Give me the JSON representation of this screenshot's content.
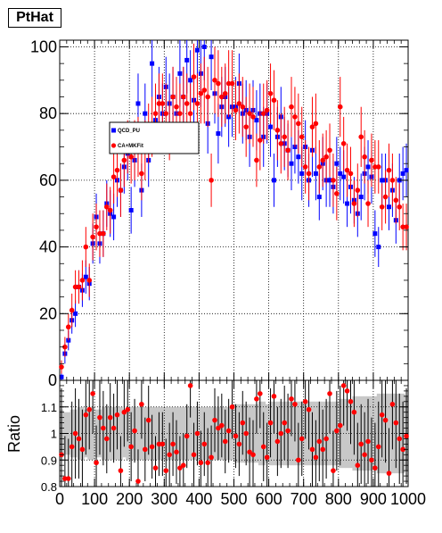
{
  "title": "PtHat",
  "chart_data": [
    {
      "type": "scatter",
      "title": "PtHat",
      "xlabel": "",
      "ylabel": "",
      "xlim": [
        0,
        1000
      ],
      "ylim": [
        0,
        102
      ],
      "x_ticks": [
        "0",
        "100",
        "200",
        "300",
        "400",
        "500",
        "600",
        "700",
        "800",
        "900",
        "1000"
      ],
      "y_ticks": [
        "0",
        "20",
        "40",
        "60",
        "80",
        "100"
      ],
      "grid": true,
      "legend": "upper-left-center",
      "series": [
        {
          "name": "QCD_PU",
          "color": "#0000ff",
          "marker": "square",
          "x": [
            5,
            15,
            25,
            35,
            45,
            55,
            65,
            75,
            85,
            95,
            105,
            115,
            125,
            135,
            145,
            155,
            165,
            175,
            185,
            195,
            205,
            215,
            225,
            235,
            245,
            255,
            265,
            275,
            285,
            295,
            305,
            315,
            325,
            335,
            345,
            355,
            365,
            375,
            385,
            395,
            405,
            415,
            425,
            435,
            445,
            455,
            465,
            475,
            485,
            495,
            505,
            515,
            525,
            535,
            545,
            555,
            565,
            575,
            585,
            595,
            605,
            615,
            625,
            635,
            645,
            655,
            665,
            675,
            685,
            695,
            705,
            715,
            725,
            735,
            745,
            755,
            765,
            775,
            785,
            795,
            805,
            815,
            825,
            835,
            845,
            855,
            865,
            875,
            885,
            895,
            905,
            915,
            925,
            935,
            945,
            955,
            965,
            975,
            985,
            995
          ],
          "values": [
            1,
            8,
            12,
            18,
            20,
            28,
            27,
            31,
            29,
            41,
            49,
            41,
            44,
            53,
            50,
            49,
            60,
            57,
            64,
            68,
            51,
            66,
            83,
            57,
            80,
            66,
            95,
            78,
            85,
            80,
            88,
            83,
            85,
            80,
            92,
            85,
            96,
            90,
            84,
            99,
            92,
            100,
            77,
            97,
            86,
            74,
            82,
            85,
            79,
            82,
            82,
            89,
            80,
            81,
            73,
            81,
            78,
            80,
            73,
            80,
            76,
            60,
            73,
            79,
            71,
            69,
            65,
            70,
            67,
            62,
            70,
            60,
            69,
            62,
            55,
            65,
            60,
            60,
            58,
            65,
            62,
            61,
            53,
            58,
            54,
            50,
            55,
            62,
            64,
            61,
            44,
            40,
            60,
            60,
            52,
            57,
            48,
            60,
            62,
            63
          ],
          "errors": [
            1,
            3,
            3,
            4,
            4,
            5,
            5,
            5,
            5,
            6,
            7,
            6,
            7,
            7,
            7,
            7,
            8,
            8,
            8,
            8,
            7,
            8,
            9,
            8,
            9,
            8,
            10,
            9,
            9,
            9,
            9,
            9,
            9,
            9,
            10,
            9,
            10,
            9,
            9,
            10,
            10,
            10,
            9,
            10,
            9,
            9,
            9,
            9,
            9,
            9,
            9,
            9,
            9,
            9,
            9,
            9,
            9,
            9,
            9,
            9,
            9,
            8,
            9,
            9,
            8,
            8,
            8,
            8,
            8,
            8,
            8,
            8,
            8,
            8,
            7,
            8,
            8,
            8,
            8,
            8,
            8,
            8,
            7,
            8,
            7,
            7,
            7,
            8,
            8,
            8,
            7,
            6,
            8,
            8,
            7,
            8,
            7,
            8,
            8,
            8
          ]
        },
        {
          "name": "CA+MKFit",
          "color": "#ff0000",
          "marker": "circle",
          "x": [
            5,
            15,
            25,
            35,
            45,
            55,
            65,
            75,
            85,
            95,
            105,
            115,
            125,
            135,
            145,
            155,
            165,
            175,
            185,
            195,
            205,
            215,
            225,
            235,
            245,
            255,
            265,
            275,
            285,
            295,
            305,
            315,
            325,
            335,
            345,
            355,
            365,
            375,
            385,
            395,
            405,
            415,
            425,
            435,
            445,
            455,
            465,
            475,
            485,
            495,
            505,
            515,
            525,
            535,
            545,
            555,
            565,
            575,
            585,
            595,
            605,
            615,
            625,
            635,
            645,
            655,
            665,
            675,
            685,
            695,
            705,
            715,
            725,
            735,
            745,
            755,
            765,
            775,
            785,
            795,
            805,
            815,
            825,
            835,
            845,
            855,
            865,
            875,
            885,
            895,
            905,
            915,
            925,
            935,
            945,
            955,
            965,
            975,
            985,
            995
          ],
          "values": [
            4,
            10,
            16,
            21,
            28,
            28,
            30,
            40,
            30,
            43,
            46,
            44,
            44,
            52,
            51,
            61,
            63,
            57,
            66,
            70,
            67,
            69,
            70,
            62,
            69,
            74,
            76,
            80,
            83,
            83,
            80,
            75,
            85,
            82,
            80,
            85,
            83,
            80,
            91,
            83,
            86,
            87,
            85,
            60,
            90,
            89,
            85,
            86,
            89,
            89,
            81,
            83,
            82,
            76,
            80,
            79,
            66,
            72,
            80,
            81,
            86,
            84,
            75,
            71,
            73,
            69,
            82,
            79,
            77,
            73,
            64,
            62,
            76,
            77,
            64,
            66,
            67,
            69,
            60,
            56,
            82,
            71,
            63,
            62,
            53,
            57,
            73,
            67,
            53,
            66,
            64,
            64,
            52,
            55,
            63,
            60,
            54,
            52,
            46,
            46
          ],
          "errors": [
            2,
            3,
            4,
            5,
            5,
            5,
            6,
            6,
            5,
            7,
            7,
            7,
            7,
            7,
            7,
            8,
            8,
            8,
            8,
            8,
            8,
            9,
            9,
            8,
            9,
            9,
            9,
            9,
            9,
            9,
            9,
            9,
            9,
            9,
            9,
            9,
            9,
            9,
            10,
            9,
            9,
            10,
            9,
            8,
            10,
            10,
            9,
            9,
            10,
            10,
            9,
            9,
            9,
            9,
            9,
            9,
            8,
            9,
            9,
            9,
            9,
            9,
            9,
            9,
            9,
            9,
            9,
            9,
            9,
            9,
            8,
            8,
            9,
            9,
            8,
            8,
            8,
            8,
            8,
            8,
            9,
            8,
            8,
            8,
            7,
            8,
            9,
            8,
            7,
            8,
            8,
            8,
            7,
            8,
            8,
            8,
            7,
            7,
            7,
            7
          ]
        }
      ]
    },
    {
      "type": "scatter",
      "title": "",
      "xlabel": "",
      "ylabel": "Ratio",
      "xlim": [
        0,
        1000
      ],
      "ylim": [
        0.8,
        1.2
      ],
      "x_ticks": [
        "0",
        "100",
        "200",
        "300",
        "400",
        "500",
        "600",
        "700",
        "800",
        "900",
        "1000"
      ],
      "y_ticks": [
        "0.8",
        "0.9",
        "1",
        "1.1"
      ],
      "grid": true,
      "band_color": "#c8c8c8",
      "band_halfwidth": [
        0.09,
        0.08,
        0.08,
        0.09,
        0.09,
        0.1,
        0.1,
        0.09,
        0.1,
        0.1,
        0.09,
        0.09,
        0.1,
        0.1,
        0.1,
        0.1,
        0.1,
        0.1,
        0.09,
        0.1,
        0.1,
        0.1,
        0.1,
        0.1,
        0.1,
        0.1,
        0.1,
        0.1,
        0.1,
        0.1,
        0.1,
        0.1,
        0.1,
        0.1,
        0.1,
        0.1,
        0.1,
        0.1,
        0.1,
        0.1,
        0.1,
        0.1,
        0.1,
        0.1,
        0.1,
        0.1,
        0.1,
        0.1,
        0.1,
        0.1,
        0.11,
        0.11,
        0.11,
        0.11,
        0.11,
        0.11,
        0.11,
        0.12,
        0.12,
        0.11,
        0.12,
        0.12,
        0.12,
        0.12,
        0.12,
        0.12,
        0.12,
        0.12,
        0.12,
        0.12,
        0.12,
        0.12,
        0.12,
        0.12,
        0.12,
        0.12,
        0.12,
        0.12,
        0.12,
        0.12,
        0.13,
        0.13,
        0.13,
        0.13,
        0.14,
        0.14,
        0.14,
        0.14,
        0.14,
        0.14,
        0.14,
        0.15,
        0.15,
        0.15,
        0.15,
        0.15,
        0.15,
        0.15,
        0.15,
        0.14
      ],
      "series": [
        {
          "name": "",
          "color": "#ff0000",
          "marker": "circle",
          "x": [
            5,
            15,
            25,
            35,
            45,
            55,
            65,
            75,
            85,
            95,
            105,
            115,
            125,
            135,
            145,
            155,
            165,
            175,
            185,
            195,
            205,
            215,
            225,
            235,
            245,
            255,
            265,
            275,
            285,
            295,
            305,
            315,
            325,
            335,
            345,
            355,
            365,
            375,
            385,
            395,
            405,
            415,
            425,
            435,
            445,
            455,
            465,
            475,
            485,
            495,
            505,
            515,
            525,
            535,
            545,
            555,
            565,
            575,
            585,
            595,
            605,
            615,
            625,
            635,
            645,
            655,
            665,
            675,
            685,
            695,
            705,
            715,
            725,
            735,
            745,
            755,
            765,
            775,
            785,
            795,
            805,
            815,
            825,
            835,
            845,
            855,
            865,
            875,
            885,
            895,
            905,
            915,
            925,
            935,
            945,
            955,
            965,
            975,
            985,
            995
          ],
          "values": [
            0.92,
            0.83,
            0.83,
            0.95,
            1.0,
            0.98,
            0.94,
            1.07,
            1.09,
            1.15,
            0.89,
            1.06,
            1.02,
            0.98,
            1.06,
            1.02,
            1.07,
            0.86,
            1.08,
            1.09,
            0.95,
            1.01,
            0.82,
            1.11,
            0.94,
            1.05,
            0.95,
            0.87,
            0.96,
            0.96,
            0.86,
            0.92,
            0.96,
            0.93,
            0.87,
            0.88,
            0.99,
            1.18,
            0.92,
            1.0,
            0.89,
            0.96,
            0.89,
            0.91,
            1.05,
            1.02,
            1.03,
            0.97,
            1.01,
            1.1,
            0.99,
            0.96,
            1.04,
            1.0,
            0.93,
            0.92,
            1.13,
            1.15,
            0.95,
            0.91,
            1.04,
            1.14,
            0.97,
            1.0,
            1.04,
            1.01,
            1.13,
            1.11,
            0.9,
            0.98,
            1.12,
            1.09,
            0.94,
            0.91,
            0.97,
            0.94,
            0.98,
            1.15,
            0.86,
            1.01,
            1.03,
            1.18,
            1.16,
            1.12,
            1.08,
            0.88,
            0.96,
            0.92,
            0.97,
            0.9,
            0.87,
            0.95,
            1.07,
            1.05,
            0.85,
            1.11,
            1.04,
            0.98,
            0.94,
            0.99
          ],
          "errors": [
            0.25,
            0.16,
            0.15,
            0.17,
            0.17,
            0.15,
            0.15,
            0.15,
            0.15,
            0.15,
            0.14,
            0.14,
            0.14,
            0.13,
            0.13,
            0.13,
            0.13,
            0.13,
            0.13,
            0.12,
            0.13,
            0.12,
            0.12,
            0.13,
            0.12,
            0.13,
            0.12,
            0.12,
            0.12,
            0.12,
            0.12,
            0.12,
            0.12,
            0.12,
            0.12,
            0.12,
            0.12,
            0.12,
            0.12,
            0.12,
            0.12,
            0.12,
            0.13,
            0.12,
            0.12,
            0.12,
            0.12,
            0.12,
            0.12,
            0.12,
            0.12,
            0.12,
            0.12,
            0.12,
            0.13,
            0.13,
            0.13,
            0.13,
            0.13,
            0.13,
            0.13,
            0.14,
            0.13,
            0.13,
            0.14,
            0.14,
            0.14,
            0.14,
            0.14,
            0.14,
            0.14,
            0.15,
            0.14,
            0.14,
            0.15,
            0.15,
            0.15,
            0.15,
            0.15,
            0.15,
            0.15,
            0.15,
            0.15,
            0.16,
            0.16,
            0.16,
            0.15,
            0.16,
            0.16,
            0.16,
            0.17,
            0.17,
            0.16,
            0.16,
            0.17,
            0.17,
            0.17,
            0.17,
            0.18,
            0.18
          ]
        }
      ]
    }
  ]
}
